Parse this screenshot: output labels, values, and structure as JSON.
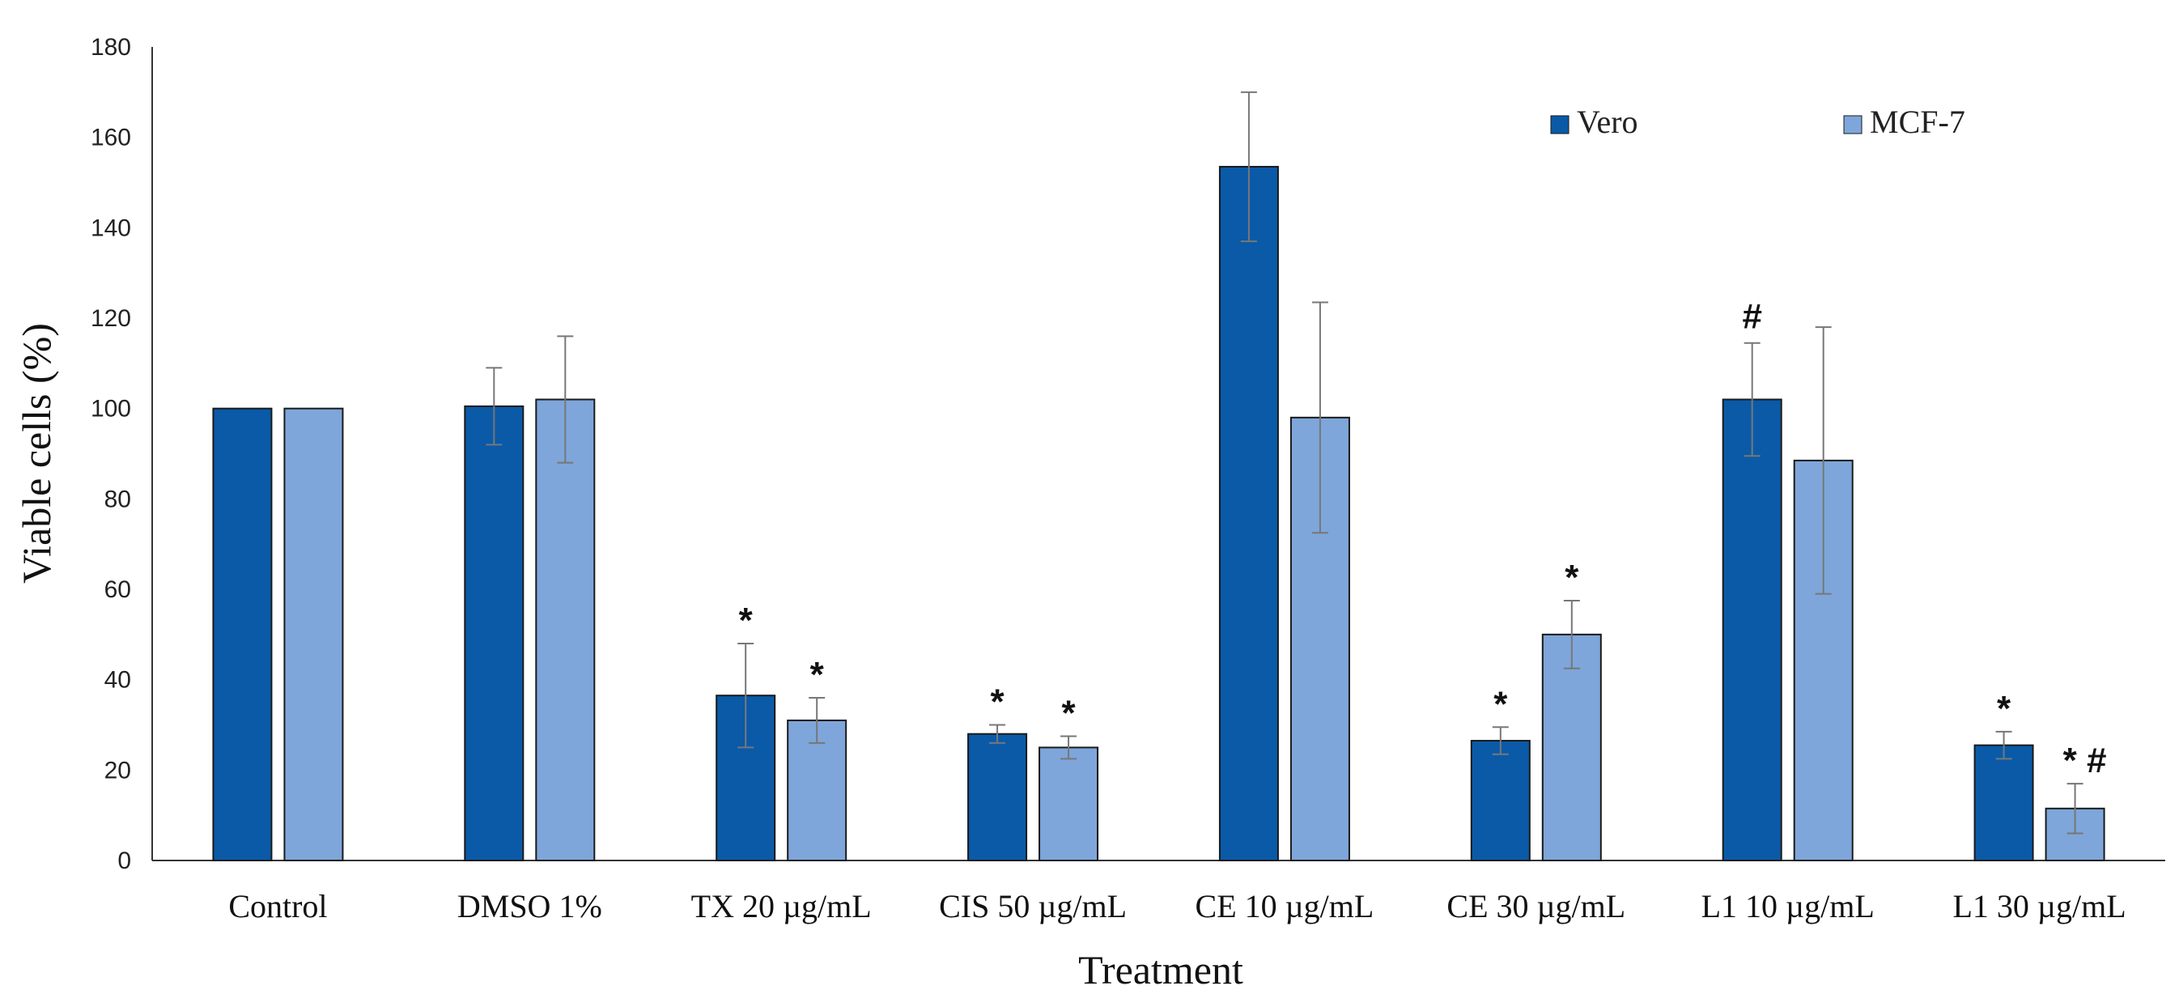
{
  "chart_data": {
    "type": "bar",
    "title": "",
    "xlabel": "Treatment",
    "ylabel": "Viable cells (%)",
    "ylim": [
      0,
      180
    ],
    "yticks": [
      0,
      20,
      40,
      60,
      80,
      100,
      120,
      140,
      160,
      180
    ],
    "grid": false,
    "legend_position": "top-right",
    "categories": [
      "Control",
      "DMSO 1%",
      "TX 20 µg/mL",
      "CIS 50 µg/mL",
      "CE 10 µg/mL",
      "CE 30 µg/mL",
      "L1 10 µg/mL",
      "L1 30 µg/mL"
    ],
    "series": [
      {
        "name": "Vero",
        "color": "#0a5aa8",
        "values": [
          100,
          100.5,
          36.5,
          28,
          153.5,
          26.5,
          102,
          25.5
        ],
        "errors": [
          0,
          8.5,
          11.5,
          2,
          16.5,
          3,
          12.5,
          3
        ],
        "annotations": [
          "",
          "",
          "*",
          "*",
          "",
          "*",
          "#",
          "*"
        ]
      },
      {
        "name": "MCF-7",
        "color": "#7ea6da",
        "values": [
          100,
          102,
          31,
          25,
          98,
          50,
          88.5,
          11.5
        ],
        "errors": [
          0,
          14,
          5,
          2.5,
          25.5,
          7.5,
          29.5,
          5.5
        ],
        "annotations": [
          "",
          "",
          "*",
          "*",
          "",
          "*",
          "",
          "* #"
        ]
      }
    ]
  }
}
